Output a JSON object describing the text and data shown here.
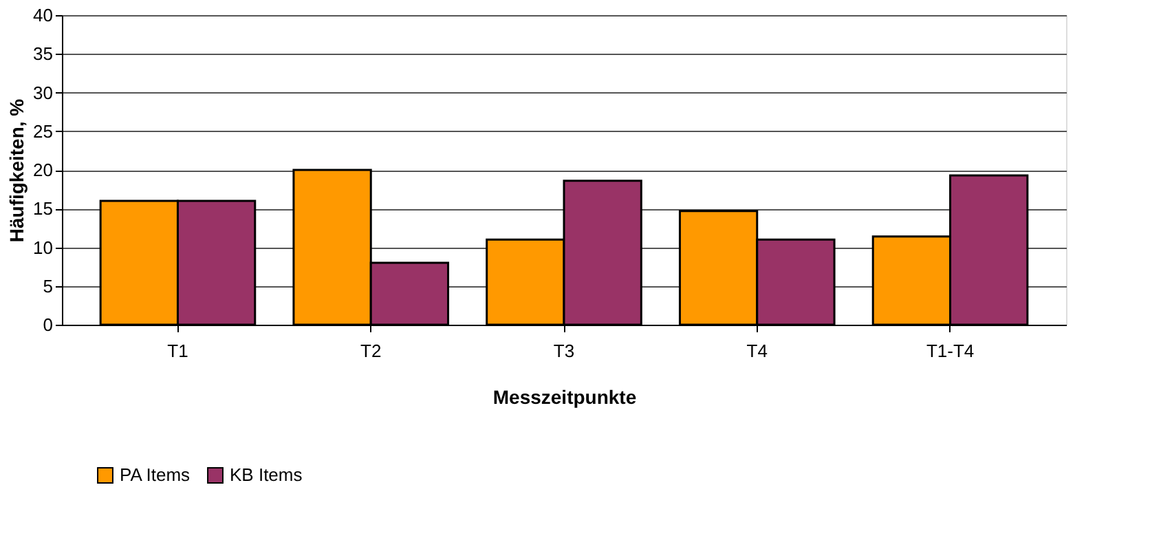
{
  "chart_data": {
    "type": "bar",
    "xlabel": "Messzeitpunkte",
    "ylabel": "Häufigkeiten, %",
    "categories": [
      "T1",
      "T2",
      "T3",
      "T4",
      "T1-T4"
    ],
    "series": [
      {
        "name": "PA Items",
        "color": "#ff9900",
        "values": [
          16,
          20,
          11,
          14.7,
          11.4
        ]
      },
      {
        "name": "KB Items",
        "color": "#993366",
        "values": [
          16,
          8,
          18.6,
          11,
          19.3
        ]
      }
    ],
    "ylim": [
      0,
      40
    ],
    "yticks": [
      0,
      5,
      10,
      15,
      20,
      25,
      30,
      35,
      40
    ],
    "grid": "y",
    "legend": "bottom"
  }
}
